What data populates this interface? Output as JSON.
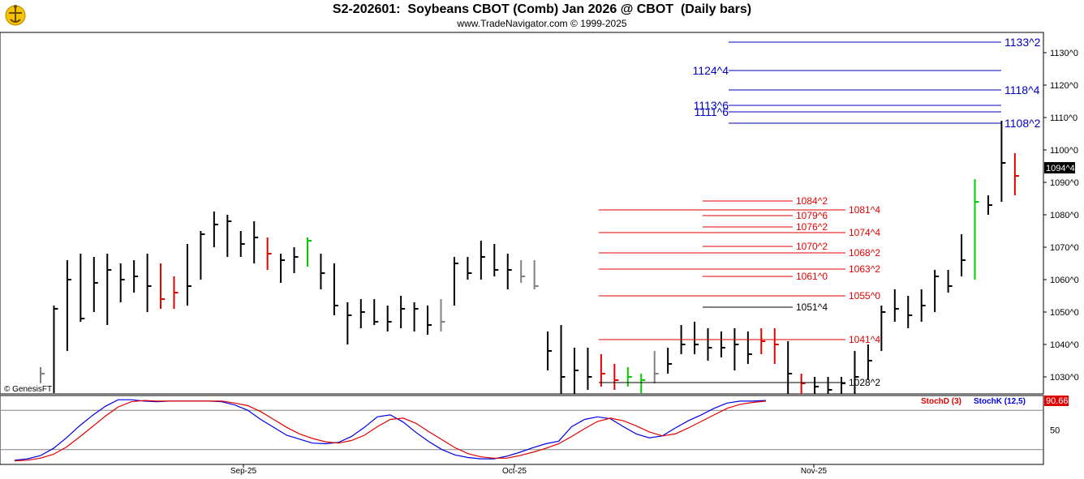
{
  "header": {
    "title": "S2-202601:  Soybeans CBOT (Comb) Jan 2026 @ CBOT  (Daily bars)",
    "subtitle": "www.TradeNavigator.com © 1999-2025",
    "copyright": "© GenesisFT"
  },
  "colors": {
    "price_bar": "#000000",
    "down_bar": "#e00000",
    "up_bar": "#00cc00",
    "synthetic_bar": "#808080",
    "blue_level": "#0000c0",
    "red_level": "#e00000",
    "stoch_d": "#e00000",
    "stoch_k": "#0000e0",
    "last_price_box": "#000000",
    "stoch_box": "#e00000"
  },
  "chart_data": [
    {
      "type": "ohlc",
      "title": "S2-202601:  Soybeans CBOT (Comb) Jan 2026 @ CBOT  (Daily bars)",
      "ylim": [
        1025,
        1140
      ],
      "y_ticks": [
        "1030^0",
        "1040^0",
        "1050^0",
        "1060^0",
        "1070^0",
        "1080^0",
        "1090^0",
        "1100^0",
        "1110^0",
        "1120^0",
        "1130^0"
      ],
      "y_tick_values": [
        1030,
        1040,
        1050,
        1060,
        1070,
        1080,
        1090,
        1100,
        1110,
        1120,
        1130
      ],
      "last_price_label": "1094^4",
      "last_price_value": 1094.5,
      "x_labels": [
        "Sep-25",
        "Oct-25",
        "Nov-25"
      ],
      "x_label_index": [
        16,
        36,
        58
      ],
      "bars": [
        [
          1033,
          1028,
          1031,
          "gray"
        ],
        [
          1052,
          1025,
          1051,
          "black"
        ],
        [
          1066,
          1038,
          1060,
          "black"
        ],
        [
          1068,
          1047,
          1048,
          "black"
        ],
        [
          1067,
          1050,
          1059,
          "black"
        ],
        [
          1068,
          1046,
          1063,
          "black"
        ],
        [
          1065,
          1053,
          1060,
          "black"
        ],
        [
          1066,
          1056,
          1061,
          "black"
        ],
        [
          1068,
          1050,
          1058,
          "black"
        ],
        [
          1065,
          1051,
          1054,
          "red"
        ],
        [
          1061,
          1051,
          1056,
          "red"
        ],
        [
          1071,
          1052,
          1058,
          "black"
        ],
        [
          1075,
          1060,
          1074,
          "black"
        ],
        [
          1081,
          1070,
          1077,
          "black"
        ],
        [
          1080,
          1067,
          1078,
          "black"
        ],
        [
          1075,
          1067,
          1071,
          "black"
        ],
        [
          1078,
          1065,
          1073,
          "black"
        ],
        [
          1073,
          1063,
          1068,
          "red"
        ],
        [
          1068,
          1059,
          1066,
          "black"
        ],
        [
          1070,
          1062,
          1067,
          "black"
        ],
        [
          1073,
          1064,
          1072,
          "green"
        ],
        [
          1068,
          1057,
          1062,
          "black"
        ],
        [
          1065,
          1049,
          1052,
          "black"
        ],
        [
          1053,
          1040,
          1049,
          "black"
        ],
        [
          1054,
          1045,
          1050,
          "black"
        ],
        [
          1054,
          1046,
          1047,
          "black"
        ],
        [
          1052,
          1044,
          1047,
          "black"
        ],
        [
          1055,
          1045,
          1051,
          "black"
        ],
        [
          1053,
          1044,
          1051,
          "black"
        ],
        [
          1052,
          1043,
          1046,
          "black"
        ],
        [
          1054,
          1044,
          1047,
          "gray"
        ],
        [
          1067,
          1052,
          1065,
          "black"
        ],
        [
          1067,
          1060,
          1062,
          "black"
        ],
        [
          1072,
          1060,
          1067,
          "black"
        ],
        [
          1071,
          1061,
          1063,
          "black"
        ],
        [
          1068,
          1057,
          1063,
          "black"
        ],
        [
          1066,
          1059,
          1061,
          "gray"
        ],
        [
          1066,
          1057,
          1058,
          "gray"
        ],
        [
          1044,
          1032,
          1038,
          "black"
        ],
        [
          1046,
          1024,
          1030,
          "black"
        ],
        [
          1039,
          1024,
          1032,
          "black"
        ],
        [
          1039,
          1026,
          1030,
          "black"
        ],
        [
          1037,
          1027,
          1031,
          "red"
        ],
        [
          1034,
          1026,
          1029,
          "red"
        ],
        [
          1033,
          1027,
          1030,
          "green"
        ],
        [
          1031,
          1025,
          1029,
          "green"
        ],
        [
          1038,
          1028,
          1031,
          "gray"
        ],
        [
          1039,
          1031,
          1034,
          "black"
        ],
        [
          1046,
          1037,
          1040,
          "black"
        ],
        [
          1047,
          1037,
          1040,
          "black"
        ],
        [
          1045,
          1035,
          1039,
          "black"
        ],
        [
          1044,
          1036,
          1039,
          "black"
        ],
        [
          1045,
          1032,
          1040,
          "black"
        ],
        [
          1044,
          1034,
          1037,
          "black"
        ],
        [
          1045,
          1037,
          1041,
          "red"
        ],
        [
          1045,
          1034,
          1040,
          "red"
        ],
        [
          1041,
          1024,
          1031,
          "black"
        ],
        [
          1031,
          1024,
          1028,
          "red"
        ],
        [
          1030,
          1024,
          1027,
          "black"
        ],
        [
          1030,
          1022,
          1026,
          "black"
        ],
        [
          1030,
          1022,
          1028,
          "black"
        ],
        [
          1038,
          1024,
          1030,
          "black"
        ],
        [
          1040,
          1029,
          1035,
          "black"
        ],
        [
          1052,
          1038,
          1050,
          "black"
        ],
        [
          1057,
          1047,
          1051,
          "black"
        ],
        [
          1055,
          1045,
          1049,
          "black"
        ],
        [
          1057,
          1047,
          1052,
          "black"
        ],
        [
          1063,
          1050,
          1061,
          "black"
        ],
        [
          1063,
          1056,
          1058,
          "black"
        ],
        [
          1074,
          1061,
          1066,
          "black"
        ],
        [
          1091,
          1060,
          1084,
          "green"
        ],
        [
          1086,
          1080,
          1083,
          "black"
        ],
        [
          1109,
          1084,
          1096,
          "black"
        ],
        [
          1099,
          1086,
          1092,
          "red"
        ]
      ],
      "blue_levels": [
        {
          "label": "1133^2",
          "value": 1133.25
        },
        {
          "label": "1124^4",
          "value": 1124.5
        },
        {
          "label": "1118^4",
          "value": 1118.5
        },
        {
          "label": "1113^6",
          "value": 1113.75
        },
        {
          "label": "1111^6",
          "value": 1111.75
        },
        {
          "label": "1108^2",
          "value": 1108.25
        }
      ],
      "red_levels": [
        {
          "label": "1084^2",
          "value": 1084.25,
          "side": "inner"
        },
        {
          "label": "1081^4",
          "value": 1081.5,
          "side": "outer"
        },
        {
          "label": "1079^6",
          "value": 1079.75,
          "side": "inner"
        },
        {
          "label": "1076^2",
          "value": 1076.25,
          "side": "inner"
        },
        {
          "label": "1074^4",
          "value": 1074.5,
          "side": "outer"
        },
        {
          "label": "1070^2",
          "value": 1070.25,
          "side": "inner"
        },
        {
          "label": "1068^2",
          "value": 1068.25,
          "side": "outer"
        },
        {
          "label": "1063^2",
          "value": 1063.25,
          "side": "outer"
        },
        {
          "label": "1061^0",
          "value": 1061.0,
          "side": "inner"
        },
        {
          "label": "1055^0",
          "value": 1055.0,
          "side": "outer"
        },
        {
          "label": "1041^4",
          "value": 1041.5,
          "side": "outer"
        }
      ],
      "black_levels": [
        {
          "label": "1051^4",
          "value": 1051.5,
          "side": "inner"
        },
        {
          "label": "1028^2",
          "value": 1028.25,
          "side": "outer"
        }
      ]
    },
    {
      "type": "line",
      "ylim": [
        0,
        100
      ],
      "y_ticks": [
        "50"
      ],
      "y_tick_values": [
        50
      ],
      "reference_lines": [
        80,
        20
      ],
      "legend": [
        "StochD (3)",
        "StochK (12,5)"
      ],
      "last_value_label": "90.66",
      "series": [
        {
          "name": "StochK (12,5)",
          "color": "#0000e0",
          "values": [
            4,
            6,
            11,
            22,
            38,
            56,
            72,
            86,
            96,
            96,
            94,
            93,
            94,
            94,
            94,
            94,
            93,
            88,
            80,
            66,
            54,
            42,
            36,
            30,
            29,
            31,
            40,
            54,
            70,
            73,
            62,
            46,
            32,
            20,
            12,
            8,
            6,
            6,
            10,
            16,
            23,
            29,
            33,
            55,
            66,
            70,
            67,
            55,
            44,
            38,
            41,
            53,
            64,
            73,
            83,
            91,
            94,
            94,
            95
          ]
        },
        {
          "name": "StochD (3)",
          "color": "#e00000",
          "values": [
            3,
            4,
            7,
            13,
            24,
            39,
            55,
            71,
            85,
            93,
            95,
            94,
            94,
            94,
            94,
            94,
            94,
            91,
            87,
            78,
            66,
            54,
            44,
            37,
            32,
            30,
            34,
            42,
            55,
            66,
            68,
            60,
            47,
            35,
            23,
            14,
            9,
            7,
            7,
            11,
            16,
            22,
            29,
            40,
            52,
            63,
            68,
            64,
            56,
            47,
            41,
            44,
            53,
            63,
            73,
            83,
            89,
            92,
            94
          ]
        }
      ]
    }
  ]
}
